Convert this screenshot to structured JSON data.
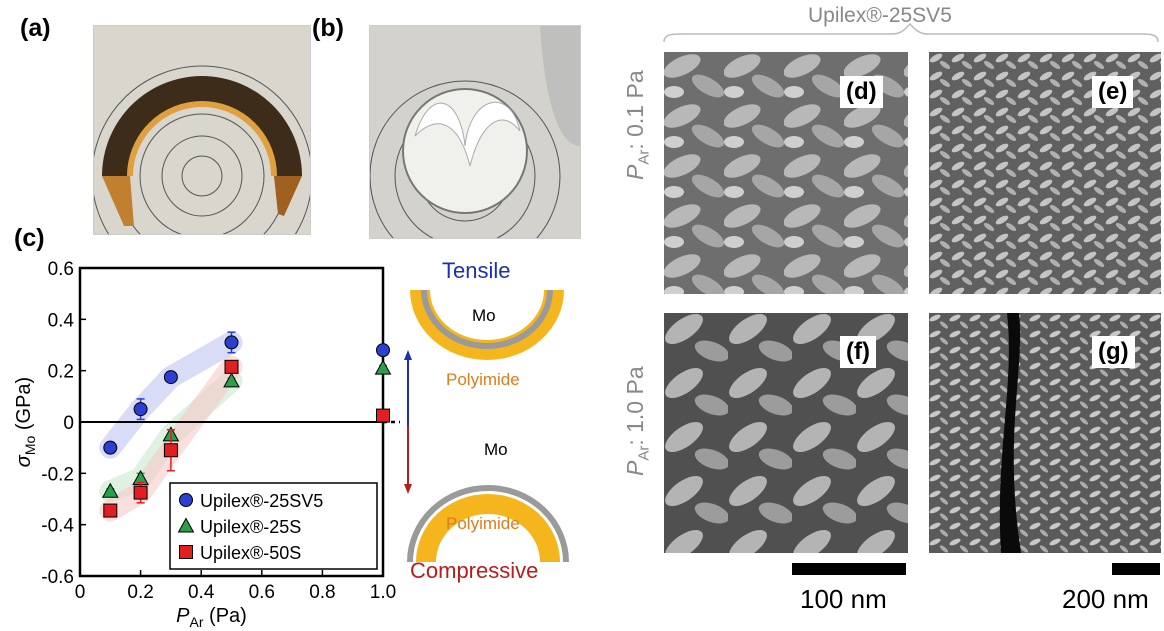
{
  "panels": {
    "a": "(a)",
    "b": "(b)",
    "c": "(c)",
    "d": "(d)",
    "e": "(e)",
    "f": "(f)",
    "g": "(g)"
  },
  "sem": {
    "header": "Upilex®-25SV5",
    "row1_symbol": "P",
    "row1_sub": "Ar",
    "row1_rest": ": 0.1 Pa",
    "row2_symbol": "P",
    "row2_sub": "Ar",
    "row2_rest": ": 1.0 Pa",
    "scale1": "100 nm",
    "scale2": "200 nm"
  },
  "schematic": {
    "tensile": "Tensile",
    "compressive": "Compressive",
    "mo_top": "Mo",
    "mo_bottom": "Mo",
    "polyimide_top": "Polyimide",
    "polyimide_bottom": "Polyimide",
    "colors": {
      "tensile": "#1f2fb5",
      "compressive": "#b81c1c",
      "polyimide": "#f5b51c",
      "polyimide_text": "#e07b1a",
      "mo": "#9a9a9a"
    }
  },
  "chart_data": {
    "type": "scatter",
    "xlabel_symbol": "P",
    "xlabel_sub": "Ar",
    "xlabel_rest": " (Pa)",
    "ylabel_symbol": "σ",
    "ylabel_sub": "Mo",
    "ylabel_rest": " (GPa)",
    "xlim": [
      0,
      1.0
    ],
    "ylim": [
      -0.6,
      0.6
    ],
    "x_ticks": [
      "0",
      "0.2",
      "0.4",
      "0.6",
      "0.8",
      "1.0"
    ],
    "y_ticks": [
      "0.6",
      "0.4",
      "0.2",
      "0",
      "-0.2",
      "-0.4",
      "-0.6"
    ],
    "legend_position": "bottom-right",
    "series": [
      {
        "name": "Upilex®-25SV5",
        "marker": "circle",
        "color": "#2b3fd1",
        "x": [
          0.1,
          0.2,
          0.3,
          0.5,
          1.0
        ],
        "y": [
          -0.1,
          0.05,
          0.175,
          0.31,
          0.28
        ],
        "err": [
          0.01,
          0.04,
          0.01,
          0.04,
          0.01
        ]
      },
      {
        "name": "Upilex®-25S",
        "marker": "triangle",
        "color": "#2aa04a",
        "x": [
          0.1,
          0.2,
          0.3,
          0.5,
          1.0
        ],
        "y": [
          -0.27,
          -0.22,
          -0.05,
          0.16,
          0.21
        ],
        "err": [
          0.01,
          0.02,
          0.02,
          0.01,
          0.01
        ]
      },
      {
        "name": "Upilex®-50S",
        "marker": "square",
        "color": "#e02020",
        "x": [
          0.1,
          0.2,
          0.3,
          0.5,
          1.0
        ],
        "y": [
          -0.345,
          -0.275,
          -0.11,
          0.215,
          0.025
        ],
        "err": [
          0.01,
          0.04,
          0.08,
          0.01,
          0.01
        ]
      }
    ]
  }
}
